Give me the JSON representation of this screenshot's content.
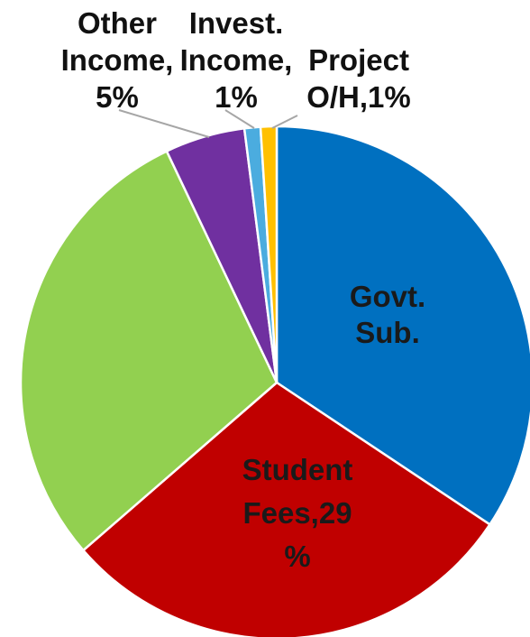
{
  "chart_data": {
    "type": "pie",
    "title": "",
    "start_angle_deg": 0,
    "direction": "clockwise",
    "slices": [
      {
        "name": "Govt. Sub.",
        "value": 34,
        "color": "#0070c0",
        "label_lines": [
          "Govt.",
          "Sub."
        ]
      },
      {
        "name": "Student Fees",
        "value": 29,
        "color": "#c00000",
        "label_lines": [
          "Student",
          "Fees,29",
          "%"
        ]
      },
      {
        "name": "",
        "value": 29,
        "color": "#92d050",
        "label_lines": []
      },
      {
        "name": "Other Income",
        "value": 5,
        "color": "#7030a0",
        "label_lines": [
          "Other",
          "Income,",
          "5%"
        ]
      },
      {
        "name": "Invest. Income",
        "value": 1,
        "color": "#4bacdf",
        "label_lines": [
          "Invest.",
          "Income,",
          "1%"
        ]
      },
      {
        "name": "Project O/H",
        "value": 1,
        "color": "#ffc000",
        "label_lines": [
          "Project",
          "O/H,1%"
        ]
      }
    ]
  }
}
